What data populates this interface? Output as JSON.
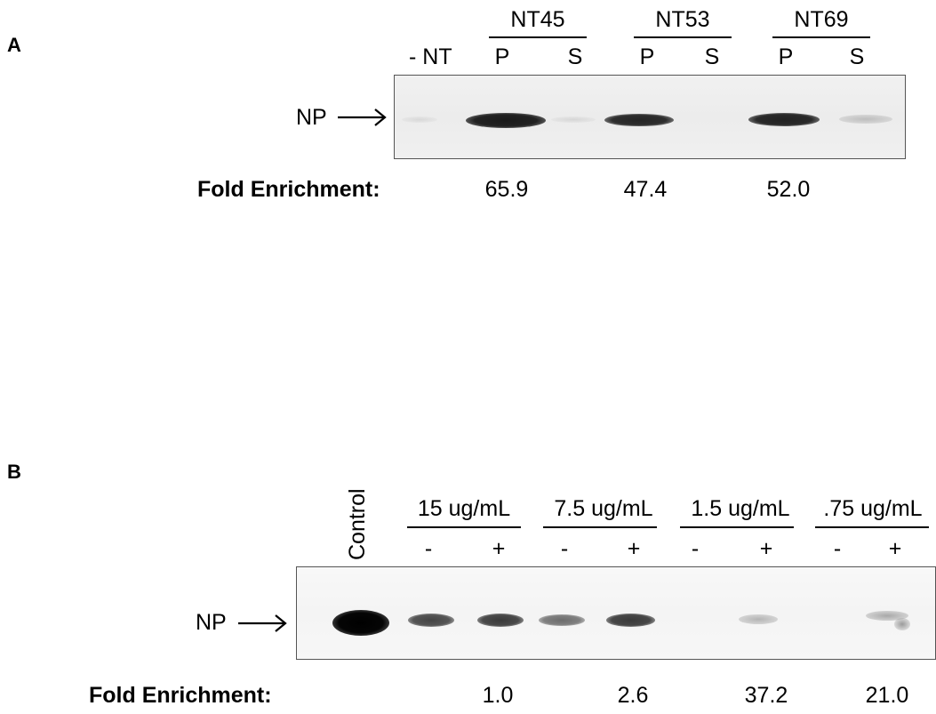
{
  "panelA": {
    "letter": "A",
    "groups": [
      "NT45",
      "NT53",
      "NT69"
    ],
    "lanes": [
      "- NT",
      "P",
      "S",
      "P",
      "S",
      "P",
      "S"
    ],
    "band_label": "NP",
    "fold_label": "Fold Enrichment:",
    "fold_values": [
      "65.9",
      "47.4",
      "52.0"
    ]
  },
  "panelB": {
    "letter": "B",
    "control_label": "Control",
    "groups": [
      "15 ug/mL",
      "7.5 ug/mL",
      "1.5 ug/mL",
      ".75 ug/mL"
    ],
    "lanes": [
      "-",
      "+",
      "-",
      "+",
      "-",
      "+",
      "-",
      "+"
    ],
    "band_label": "NP",
    "fold_label": "Fold Enrichment:",
    "fold_values": [
      "1.0",
      "2.6",
      "37.2",
      "21.0"
    ]
  }
}
